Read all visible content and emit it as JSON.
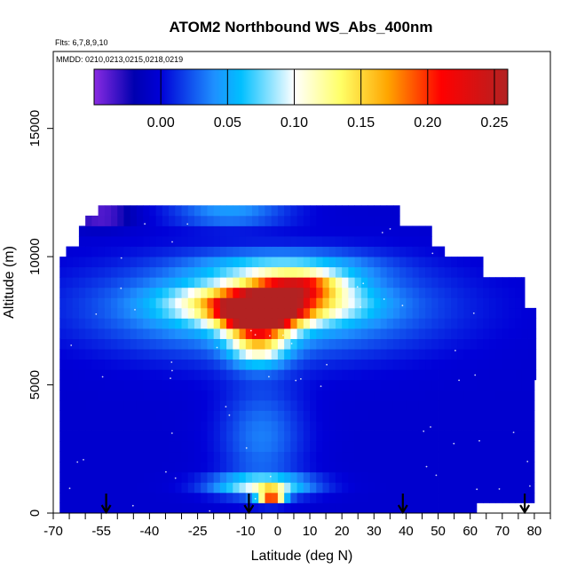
{
  "chart_data": {
    "type": "heatmap",
    "title": "ATOM2 Northbound WS_Abs_400nm",
    "flights_note": "Flts: 6,7,8,9,10",
    "mmdd_note": "MMDD: 0210,0213,0215,0218,0219",
    "xlabel": "Latitude (deg N)",
    "ylabel": "Altitude (m)",
    "xlim": [
      -70,
      85
    ],
    "ylim": [
      0,
      18000
    ],
    "x_ticks_major": [
      -70,
      -55,
      -40,
      -25,
      -10,
      0,
      10,
      20,
      30,
      40,
      50,
      60,
      70,
      80
    ],
    "x_tick_labels": [
      "-70",
      "-55",
      "-40",
      "-25",
      "-10",
      "0",
      "10",
      "20",
      "30",
      "40",
      "50",
      "60",
      "70",
      "80"
    ],
    "y_ticks": [
      0,
      5000,
      10000,
      15000
    ],
    "y_tick_labels": [
      "0",
      "5000",
      "10000",
      "15000"
    ],
    "colorbar": {
      "range": [
        -0.05,
        0.26
      ],
      "ticks": [
        0.0,
        0.05,
        0.1,
        0.15,
        0.2,
        0.25
      ],
      "tick_labels": [
        "0.00",
        "0.05",
        "0.10",
        "0.15",
        "0.20",
        "0.25"
      ],
      "colors": [
        "#8a2be2",
        "#0000b0",
        "#0000d8",
        "#1e90ff",
        "#00bfff",
        "#ffffff",
        "#ffff66",
        "#ffa500",
        "#ff0000",
        "#b22222"
      ],
      "stops": [
        -0.05,
        -0.02,
        0.0,
        0.04,
        0.06,
        0.1,
        0.135,
        0.17,
        0.21,
        0.26
      ]
    },
    "arrows_latitude": [
      -53.5,
      -9,
      39,
      77
    ],
    "profile_coverage": [
      {
        "alt": 200,
        "lat": [
          -68,
          62
        ]
      },
      {
        "alt": 1000,
        "lat": [
          -68,
          80
        ]
      },
      {
        "alt": 5000,
        "lat": [
          -68,
          80
        ]
      },
      {
        "alt": 8000,
        "lat": [
          -68,
          80.5
        ]
      },
      {
        "alt": 9000,
        "lat": [
          -68,
          77
        ]
      },
      {
        "alt": 10000,
        "lat": [
          -68,
          64
        ]
      },
      {
        "alt": 10500,
        "lat": [
          -66,
          52
        ]
      },
      {
        "alt": 11000,
        "lat": [
          -62,
          48
        ]
      },
      {
        "alt": 11500,
        "lat": [
          -60,
          38
        ]
      },
      {
        "alt": 11900,
        "lat": [
          -56,
          38
        ]
      }
    ],
    "features": [
      {
        "lat": -6,
        "alt": 7800,
        "value": 0.25,
        "sx": 11,
        "sy": 650
      },
      {
        "lat": -4,
        "alt": 8200,
        "value": 0.16,
        "sx": 24,
        "sy": 700
      },
      {
        "lat": 6,
        "alt": 8900,
        "value": 0.13,
        "sx": 13,
        "sy": 450
      },
      {
        "lat": 2,
        "alt": 9600,
        "value": 0.05,
        "sx": 26,
        "sy": 600
      },
      {
        "lat": -6,
        "alt": 6700,
        "value": 0.11,
        "sx": 9,
        "sy": 900
      },
      {
        "lat": -5,
        "alt": 8000,
        "value": 0.07,
        "sx": 50,
        "sy": 1800
      },
      {
        "lat": -15,
        "alt": 11700,
        "value": 0.045,
        "sx": 18,
        "sy": 500
      },
      {
        "lat": -5,
        "alt": 3000,
        "value": 0.035,
        "sx": 13,
        "sy": 2100
      },
      {
        "lat": -5,
        "alt": 1100,
        "value": 0.09,
        "sx": 16,
        "sy": 400
      },
      {
        "lat": -2,
        "alt": 700,
        "value": 0.2,
        "sx": 4,
        "sy": 260
      },
      {
        "lat": -55,
        "alt": 11600,
        "value": -0.045,
        "sx": 10,
        "sy": 450
      }
    ],
    "background_value": -0.005
  }
}
